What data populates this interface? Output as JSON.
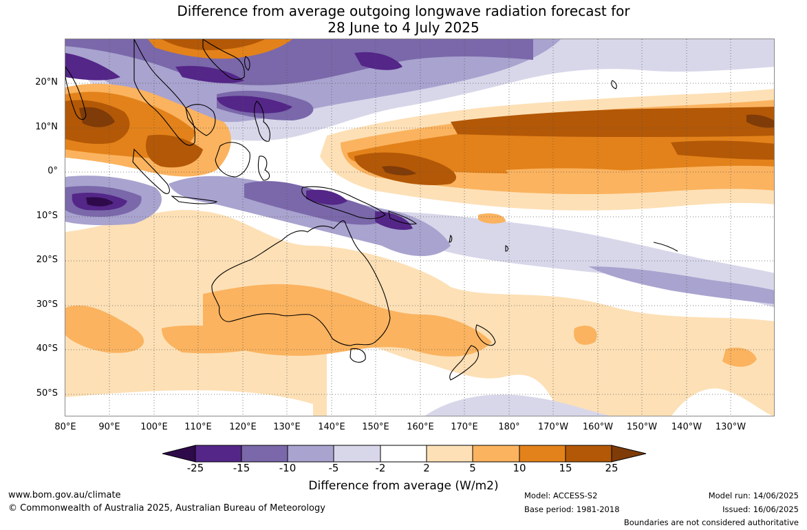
{
  "title": {
    "line1": "Difference from average outgoing longwave radiation forecast for",
    "line2": "28 June to 4 July 2025"
  },
  "map": {
    "lat_labels": [
      "20°N",
      "10°N",
      "0°",
      "10°S",
      "20°S",
      "30°S",
      "40°S",
      "50°S"
    ],
    "lon_labels": [
      "80°E",
      "90°E",
      "100°E",
      "110°E",
      "120°E",
      "130°E",
      "140°E",
      "150°E",
      "160°E",
      "170°E",
      "180°",
      "170°W",
      "160°W",
      "150°W",
      "140°W",
      "130°W"
    ],
    "region": "Australia / Indo-Pacific",
    "lat_range": [
      -55,
      30
    ],
    "lon_range": [
      80,
      240
    ],
    "grid": true
  },
  "colorbar": {
    "ticks": [
      "-25",
      "-15",
      "-10",
      "-5",
      "-2",
      "2",
      "5",
      "10",
      "15",
      "25"
    ],
    "colors": {
      "below_-25": "#2e0a4a",
      "-25_-15": "#542688",
      "-15_-10": "#7a68aa",
      "-10_-5": "#a9a3cf",
      "-5_-2": "#d8d7ea",
      "-2_2": "#ffffff",
      "2_5": "#fde0b6",
      "5_10": "#fbb35f",
      "10_15": "#e3821a",
      "15_25": "#b35806",
      "above_25": "#7f3b08"
    },
    "label": "Difference from average (W/m2)"
  },
  "footer": {
    "url": "www.bom.gov.au/climate",
    "copyright": "© Commonwealth of Australia 2025, Australian Bureau of Meteorology",
    "model": "Model: ACCESS-S2",
    "base_period": "Base period: 1981-2018",
    "model_run": "Model run: 14/06/2025",
    "issued": "Issued: 16/06/2025",
    "disclaimer": "Boundaries are not considered authoritative"
  }
}
